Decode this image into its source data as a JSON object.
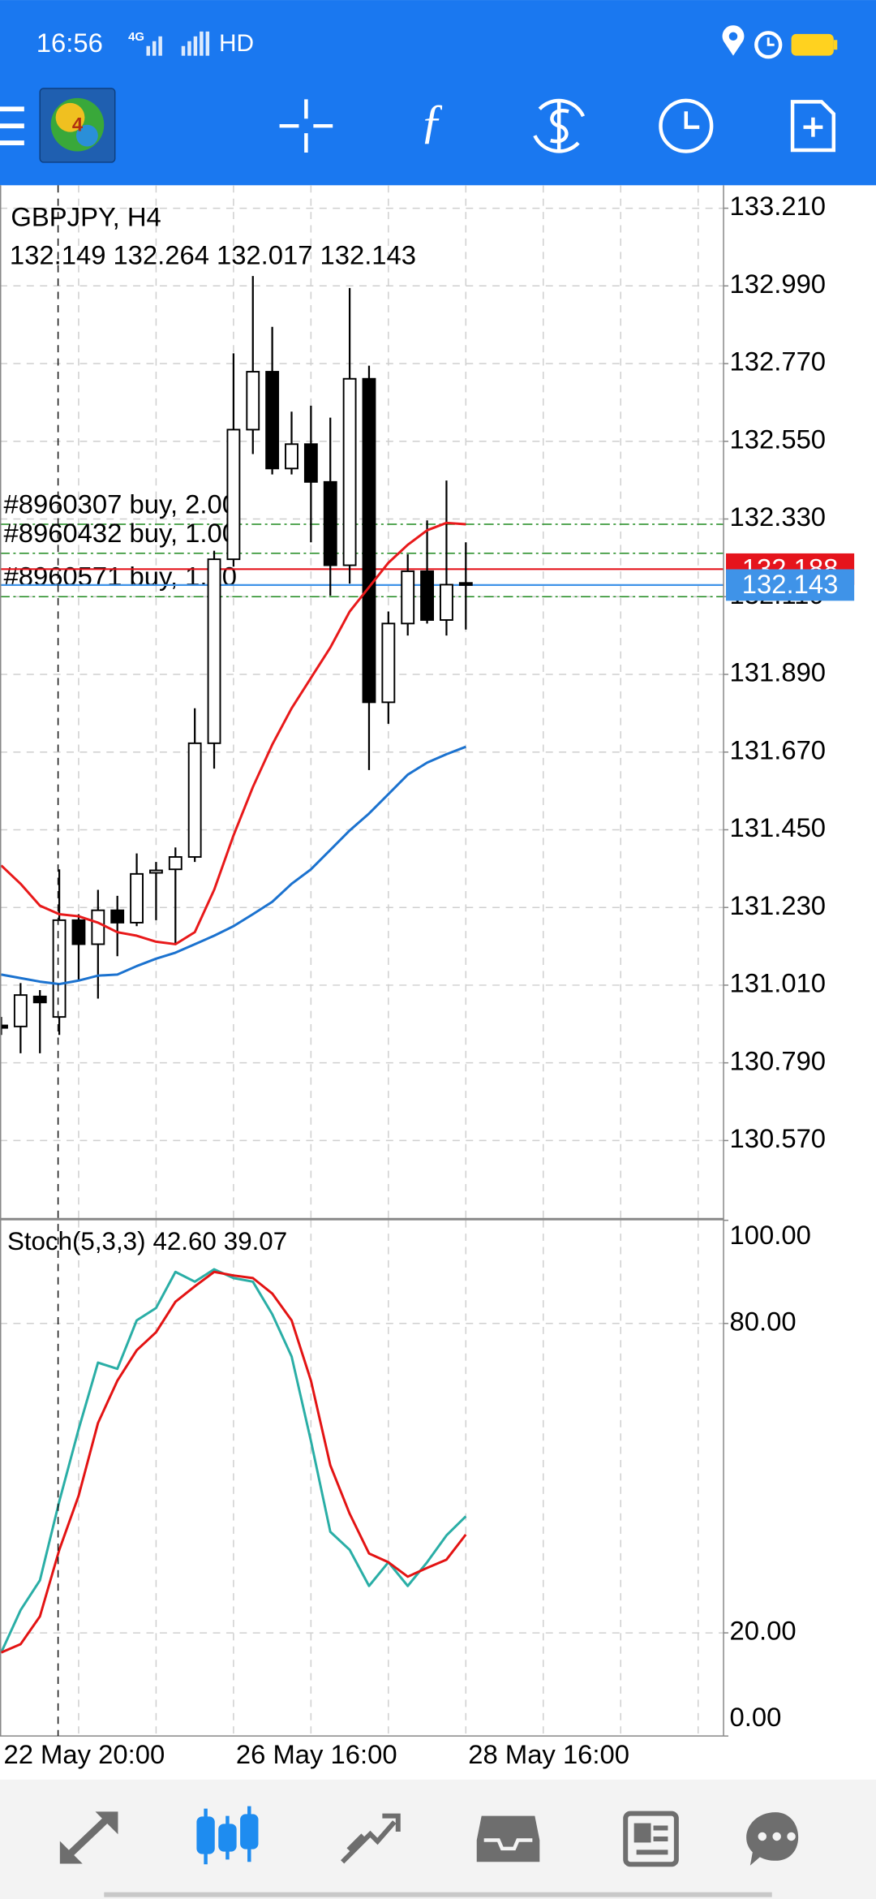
{
  "status_bar": {
    "time": "16:56",
    "network": "4G",
    "hd": "HD"
  },
  "chart": {
    "symbol": "GBPJPY, H4",
    "ylim": [
      130.351,
      133.275
    ],
    "yticks": [
      {
        "value": 133.21,
        "label": "133.210"
      },
      {
        "value": 132.99,
        "label": "132.990"
      },
      {
        "value": 132.77,
        "label": "132.770"
      },
      {
        "value": 132.55,
        "label": "132.550"
      },
      {
        "value": 132.33,
        "label": "132.330"
      },
      {
        "value": 132.11,
        "label": "132.110"
      },
      {
        "value": 131.89,
        "label": "131.890"
      },
      {
        "value": 131.67,
        "label": "131.670"
      },
      {
        "value": 131.45,
        "label": "131.450"
      },
      {
        "value": 131.23,
        "label": "131.230"
      },
      {
        "value": 131.01,
        "label": "131.010"
      },
      {
        "value": 130.79,
        "label": "130.790"
      },
      {
        "value": 130.57,
        "label": "130.570"
      }
    ],
    "categories": [
      "22 May 20:00",
      null,
      null,
      null,
      null,
      null,
      null,
      null,
      null,
      null,
      null,
      null,
      "26 May 16:00",
      null,
      null,
      null,
      null,
      null,
      null,
      null,
      null,
      null,
      null,
      null,
      "28 May 16:00"
    ],
    "candles": {
      "open": [
        130.896,
        130.893,
        130.978,
        130.92,
        131.194,
        131.126,
        131.222,
        131.187,
        131.328,
        131.338,
        131.373,
        131.695,
        132.216,
        132.583,
        132.747,
        132.473,
        132.542,
        132.435,
        132.199,
        132.727,
        131.811,
        132.034,
        132.182,
        132.044,
        132.149
      ],
      "high": [
        130.92,
        131.016,
        130.996,
        131.338,
        131.211,
        131.28,
        131.263,
        131.383,
        131.359,
        131.4,
        131.794,
        132.24,
        132.799,
        133.018,
        132.874,
        132.634,
        132.651,
        132.617,
        132.984,
        132.764,
        132.068,
        132.23,
        132.326,
        132.439,
        132.264
      ],
      "low": [
        130.869,
        130.817,
        130.817,
        130.869,
        131.023,
        130.972,
        131.092,
        131.177,
        131.194,
        131.126,
        131.359,
        131.623,
        132.195,
        132.514,
        132.456,
        132.456,
        132.264,
        132.113,
        132.147,
        131.619,
        131.75,
        132.0,
        132.034,
        132.0,
        132.017
      ],
      "close": [
        130.889,
        130.982,
        130.961,
        131.194,
        131.126,
        131.222,
        131.187,
        131.325,
        131.335,
        131.373,
        131.695,
        132.216,
        132.583,
        132.747,
        132.473,
        132.542,
        132.435,
        132.199,
        132.727,
        131.811,
        132.034,
        132.182,
        132.044,
        132.144,
        132.143
      ]
    },
    "moving_averages": [
      {
        "color": "#e8191a",
        "values": [
          131.349,
          131.297,
          131.235,
          131.211,
          131.205,
          131.187,
          131.16,
          131.15,
          131.133,
          131.126,
          131.16,
          131.28,
          131.434,
          131.571,
          131.691,
          131.794,
          131.88,
          131.966,
          132.068,
          132.137,
          132.206,
          132.257,
          132.298,
          132.319,
          132.315
        ]
      },
      {
        "color": "#1b72cf",
        "values": [
          131.04,
          131.03,
          131.02,
          131.013,
          131.023,
          131.037,
          131.04,
          131.064,
          131.085,
          131.102,
          131.126,
          131.15,
          131.177,
          131.211,
          131.246,
          131.297,
          131.338,
          131.393,
          131.448,
          131.496,
          131.551,
          131.606,
          131.64,
          131.664,
          131.685
        ]
      }
    ],
    "orders": [
      {
        "label": "#8960307 buy, 2.00",
        "price": 132.315
      },
      {
        "label": "#8960432 buy, 1.00",
        "price": 132.233
      },
      {
        "label": "#8960571 buy, 1.00",
        "price": 132.11
      }
    ],
    "price_tags": [
      {
        "value": 132.188,
        "color": "#e5141c"
      },
      {
        "value": 132.143,
        "color": "#3f93e8"
      }
    ]
  },
  "stochastic": {
    "label": "Stoch(5,3,3)",
    "readout": [
      {
        "value": 42.6,
        "label": "42.60"
      },
      {
        "value": 39.07,
        "label": "39.07"
      }
    ],
    "ylim": [
      0,
      100
    ],
    "yticks": [
      {
        "value": 100,
        "label": "100.00"
      },
      {
        "value": 80,
        "label": "80.00"
      },
      {
        "value": 20,
        "label": "20.00"
      },
      {
        "value": 0,
        "label": "0.00"
      }
    ],
    "series": [
      {
        "color": "#2aaea6",
        "values": [
          16.2,
          24.4,
          30.2,
          45.5,
          59.5,
          72.4,
          71.2,
          80.6,
          83.0,
          90.0,
          88.1,
          90.5,
          88.8,
          88.1,
          81.8,
          73.6,
          57.2,
          39.6,
          36.1,
          29.1,
          33.7,
          29.1,
          33.7,
          38.9,
          42.6
        ]
      },
      {
        "color": "#e31313",
        "values": [
          16.2,
          17.8,
          23.2,
          36.1,
          46.6,
          60.7,
          68.9,
          74.8,
          78.3,
          84.2,
          87.2,
          90.0,
          89.3,
          88.8,
          85.8,
          80.6,
          68.9,
          52.5,
          43.1,
          35.4,
          33.7,
          30.9,
          32.6,
          34.2,
          39.07
        ]
      }
    ]
  }
}
